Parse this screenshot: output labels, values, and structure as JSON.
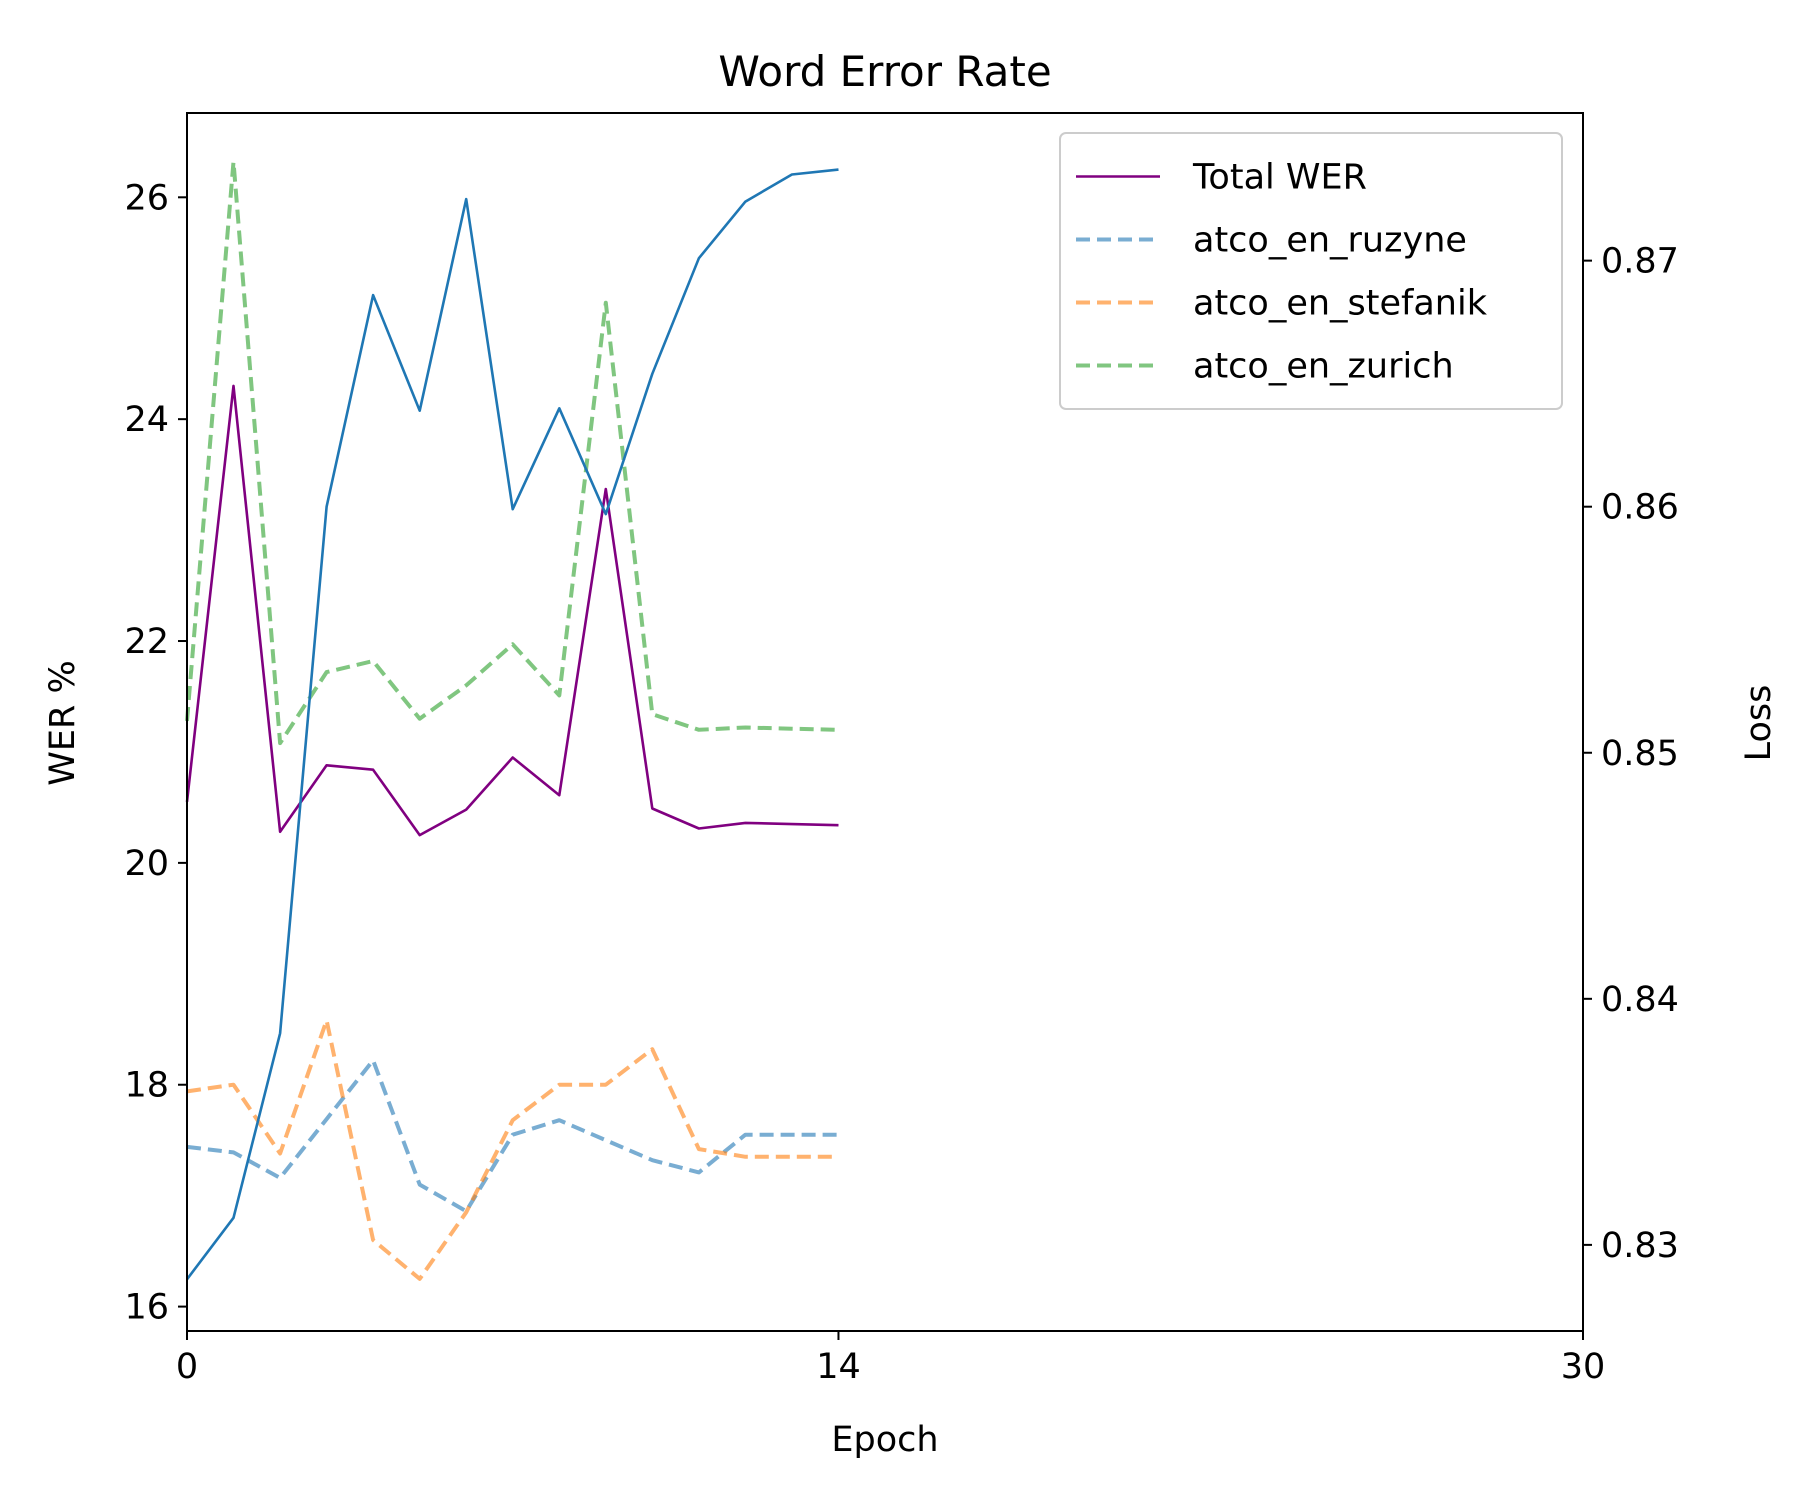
{
  "chart_data": {
    "type": "line",
    "title": "Word Error Rate",
    "xlabel": "Epoch",
    "ylabel": "WER %",
    "y2label": "Loss",
    "xlim": [
      0,
      30
    ],
    "ylim": [
      15.78,
      26.76
    ],
    "y2lim": [
      0.8265,
      0.876
    ],
    "xticks": [
      "0",
      "14",
      "30"
    ],
    "xtick_values": [
      0,
      14,
      30
    ],
    "yticks": [
      "16",
      "18",
      "20",
      "22",
      "24",
      "26"
    ],
    "ytick_values": [
      16,
      18,
      20,
      22,
      24,
      26
    ],
    "y2ticks": [
      "0.83",
      "0.84",
      "0.85",
      "0.86",
      "0.87"
    ],
    "y2tick_values": [
      0.83,
      0.84,
      0.85,
      0.86,
      0.87
    ],
    "grid": false,
    "legend_position": "top-right",
    "x": [
      0,
      1,
      2,
      3,
      4,
      5,
      6,
      7,
      8,
      9,
      10,
      11,
      12,
      13,
      14
    ],
    "series": [
      {
        "name": "Total WER",
        "axis": "left",
        "color": "#800080",
        "style": "solid",
        "in_legend": true,
        "values": [
          20.55,
          24.3,
          20.28,
          20.88,
          20.84,
          20.25,
          20.48,
          20.95,
          20.61,
          23.37,
          20.49,
          20.31,
          20.36,
          20.35,
          20.34
        ]
      },
      {
        "name": "atco_en_ruzyne",
        "axis": "left",
        "color": "#1f77b4",
        "opacity": 0.6,
        "style": "dashed",
        "in_legend": true,
        "values": [
          17.44,
          17.39,
          17.16,
          17.69,
          18.22,
          17.1,
          16.86,
          17.55,
          17.68,
          17.5,
          17.32,
          17.21,
          17.55,
          17.55,
          17.55
        ]
      },
      {
        "name": "atco_en_stefanik",
        "axis": "left",
        "color": "#ff7f0e",
        "opacity": 0.6,
        "style": "dashed",
        "in_legend": true,
        "values": [
          17.94,
          18.0,
          17.38,
          18.58,
          16.6,
          16.25,
          16.85,
          17.68,
          18.0,
          18.0,
          18.32,
          17.42,
          17.35,
          17.35,
          17.35
        ]
      },
      {
        "name": "atco_en_zurich",
        "axis": "left",
        "color": "#2ca02c",
        "opacity": 0.6,
        "style": "dashed",
        "in_legend": true,
        "values": [
          21.28,
          26.32,
          21.08,
          21.72,
          21.82,
          21.3,
          21.6,
          21.97,
          21.51,
          25.05,
          21.34,
          21.2,
          21.22,
          21.21,
          21.2
        ]
      },
      {
        "axis": "right",
        "color": "#1f77b4",
        "style": "solid",
        "in_legend": false,
        "values": [
          0.8286,
          0.8311,
          0.8386,
          0.86,
          0.8686,
          0.8639,
          0.8725,
          0.8599,
          0.864,
          0.8597,
          0.8654,
          0.8701,
          0.8724,
          0.8735,
          0.8737
        ]
      }
    ]
  }
}
